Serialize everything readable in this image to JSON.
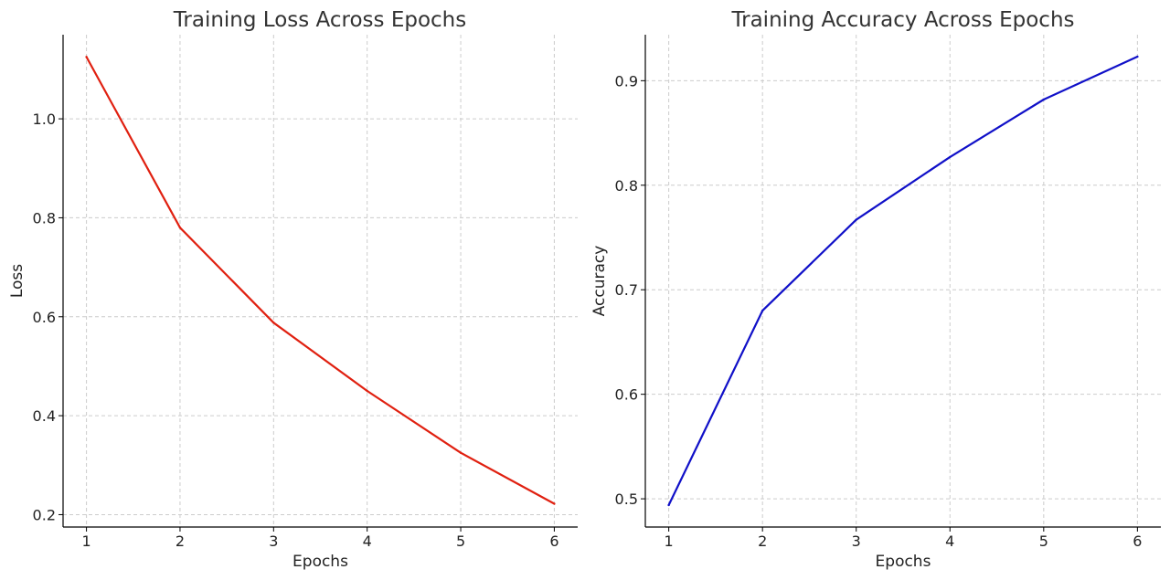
{
  "chart_data": [
    {
      "type": "line",
      "title": "Training Loss Across Epochs",
      "xlabel": "Epochs",
      "ylabel": "Loss",
      "x": [
        1,
        2,
        3,
        4,
        5,
        6
      ],
      "x_tick_labels": [
        "1",
        "2",
        "3",
        "4",
        "5",
        "6"
      ],
      "xlim": [
        0.75,
        6.25
      ],
      "ylim": [
        0.175,
        1.17
      ],
      "y_ticks": [
        0.2,
        0.4,
        0.6,
        0.8,
        1.0
      ],
      "y_tick_labels": [
        "0.2",
        "0.4",
        "0.6",
        "0.8",
        "1.0"
      ],
      "grid": true,
      "series": [
        {
          "values": [
            1.125,
            0.78,
            0.588,
            0.45,
            0.325,
            0.222
          ],
          "color": "#e02010"
        }
      ]
    },
    {
      "type": "line",
      "title": "Training Accuracy Across Epochs",
      "xlabel": "Epochs",
      "ylabel": "Accuracy",
      "x": [
        1,
        2,
        3,
        4,
        5,
        6
      ],
      "x_tick_labels": [
        "1",
        "2",
        "3",
        "4",
        "5",
        "6"
      ],
      "xlim": [
        0.75,
        6.25
      ],
      "ylim": [
        0.473,
        0.944
      ],
      "y_ticks": [
        0.5,
        0.6,
        0.7,
        0.8,
        0.9
      ],
      "y_tick_labels": [
        "0.5",
        "0.6",
        "0.7",
        "0.8",
        "0.9"
      ],
      "grid": true,
      "series": [
        {
          "values": [
            0.494,
            0.68,
            0.767,
            0.827,
            0.882,
            0.923
          ],
          "color": "#1010c8"
        }
      ]
    }
  ]
}
